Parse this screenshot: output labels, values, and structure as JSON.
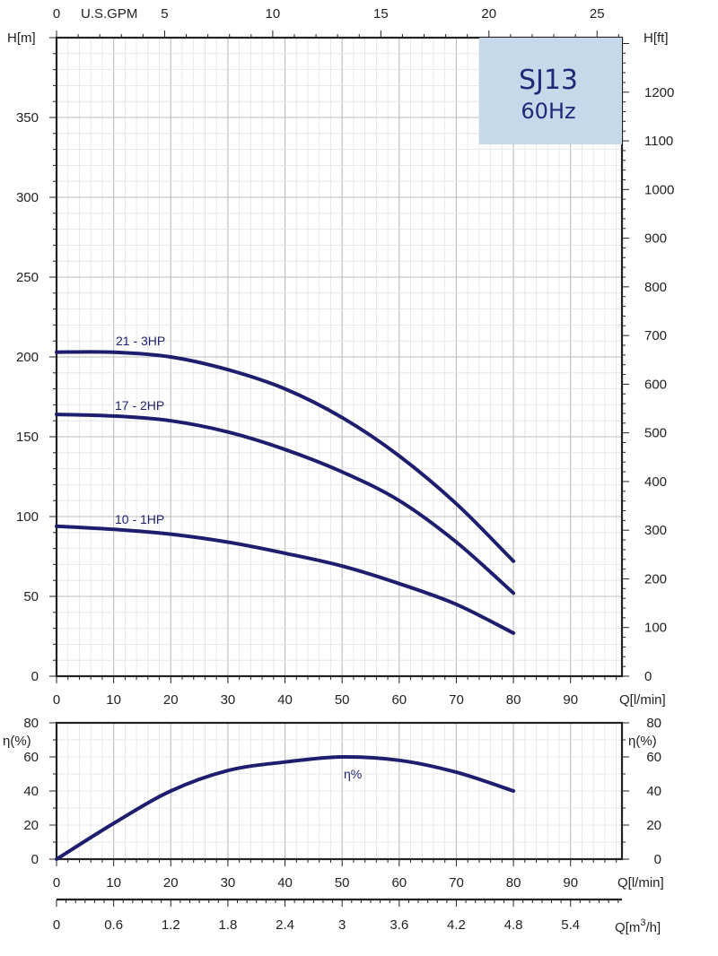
{
  "chart_data": [
    {
      "type": "line",
      "title": "SJ13",
      "subtitle": "60Hz",
      "xlabel": "Q[l/min]",
      "ylabel": "H[m]",
      "y2label": "H[ft]",
      "top_axis_label": "U.S.GPM",
      "xlim": [
        0,
        99
      ],
      "ylim": [
        0,
        400
      ],
      "y2lim": [
        0,
        1312
      ],
      "x_ticks": [
        "0",
        "10",
        "20",
        "30",
        "40",
        "50",
        "60",
        "70",
        "80",
        "90"
      ],
      "y_ticks": [
        "0",
        "50",
        "100",
        "150",
        "200",
        "250",
        "300",
        "350"
      ],
      "y2_ticks": [
        "0",
        "100",
        "200",
        "300",
        "400",
        "500",
        "600",
        "700",
        "800",
        "900",
        "1000",
        "1100",
        "1200"
      ],
      "top_ticks": [
        "0",
        "5",
        "10",
        "15",
        "20",
        "25"
      ],
      "grid": true,
      "series": [
        {
          "name": "21 - 3HP",
          "x": [
            0,
            10,
            20,
            30,
            40,
            50,
            60,
            70,
            80
          ],
          "y": [
            203,
            203,
            200,
            192,
            180,
            162,
            138,
            108,
            72
          ]
        },
        {
          "name": "17 - 2HP",
          "x": [
            0,
            10,
            20,
            30,
            40,
            50,
            60,
            70,
            80
          ],
          "y": [
            164,
            163,
            160,
            153,
            142,
            128,
            110,
            84,
            52
          ]
        },
        {
          "name": "10 - 1HP",
          "x": [
            0,
            10,
            20,
            30,
            40,
            50,
            60,
            70,
            80
          ],
          "y": [
            94,
            92,
            89,
            84,
            77,
            69,
            58,
            45,
            27
          ]
        }
      ]
    },
    {
      "type": "line",
      "xlabel": "Q[l/min]",
      "ylabel": "η(%)",
      "y2label": "η(%)",
      "xlim": [
        0,
        99
      ],
      "ylim": [
        0,
        80
      ],
      "x_ticks": [
        "0",
        "10",
        "20",
        "30",
        "40",
        "50",
        "60",
        "70",
        "80",
        "90"
      ],
      "y_ticks": [
        "0",
        "20",
        "40",
        "60",
        "80"
      ],
      "grid": true,
      "series": [
        {
          "name": "η%",
          "x": [
            0,
            10,
            20,
            30,
            40,
            50,
            60,
            70,
            80
          ],
          "y": [
            0,
            21,
            40,
            52,
            57,
            60,
            58,
            51,
            40
          ]
        }
      ]
    },
    {
      "type": "axis",
      "xlabel_main": "Q[m",
      "xlabel_sup": "3",
      "xlabel_tail": "/h]",
      "xlim": [
        0,
        5.94
      ],
      "x_ticks": [
        "0",
        "0.6",
        "1.2",
        "1.8",
        "2.4",
        "3",
        "3.6",
        "4.2",
        "4.8",
        "5.4"
      ]
    }
  ],
  "colors": {
    "curve": "#1e1e6e",
    "title_box": "#c5d9ea",
    "title_text": "#1e2a78",
    "grid": "#c8c8c8",
    "axis": "#222222"
  }
}
